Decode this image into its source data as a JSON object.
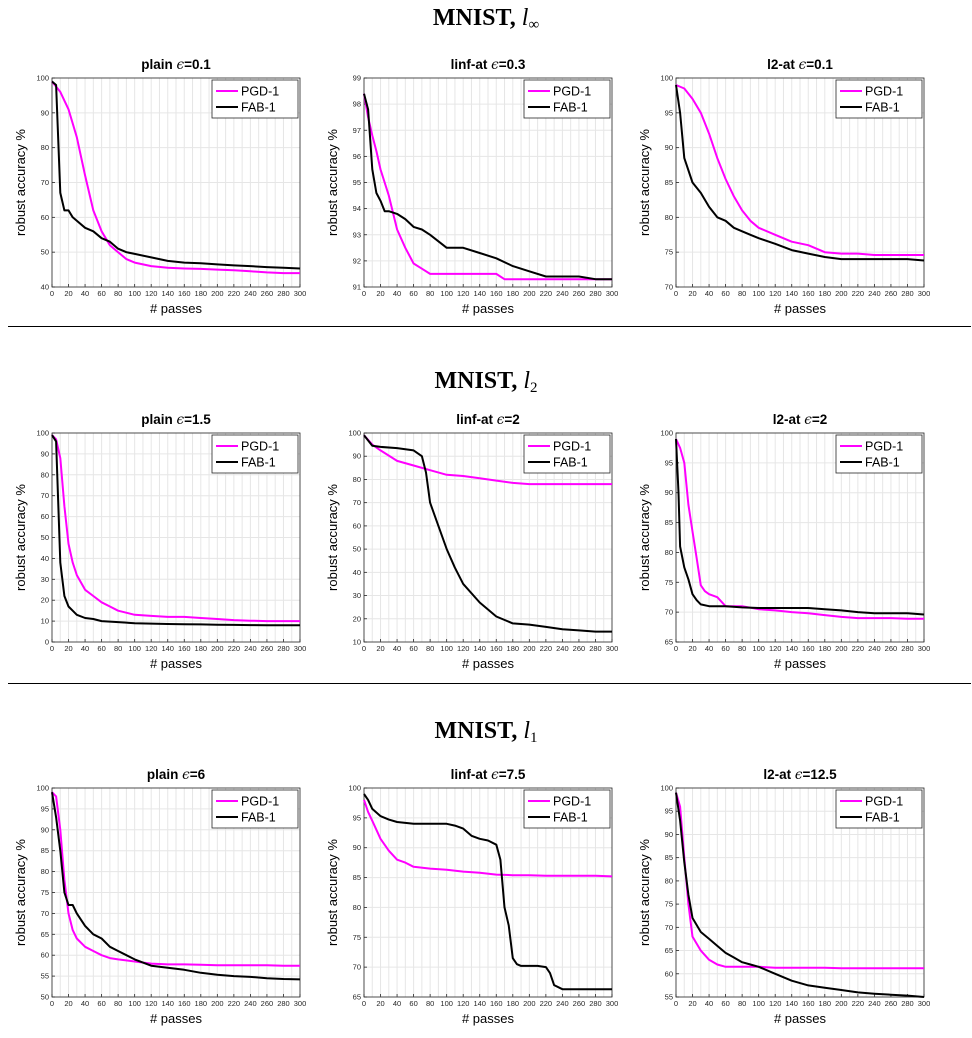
{
  "sections": [
    {
      "title": "MNIST,",
      "norm_letter": "l",
      "norm_sub": "∞"
    },
    {
      "title": "MNIST,",
      "norm_letter": "l",
      "norm_sub": "2"
    },
    {
      "title": "MNIST,",
      "norm_letter": "l",
      "norm_sub": "1"
    }
  ],
  "colors": {
    "PGD-1": "#ff00ff",
    "FAB-1": "#000000",
    "grid": "#e6e6e6"
  },
  "chart_data": [
    {
      "type": "line",
      "title_prefix": "plain",
      "title_value": "0.1",
      "xlabel": "# passes",
      "ylabel": "robust accuracy %",
      "xlim": [
        0,
        300
      ],
      "ylim": [
        40,
        100
      ],
      "yticks": [
        40,
        50,
        60,
        70,
        80,
        90,
        100
      ],
      "grid": true,
      "legend": "top-right",
      "series": [
        {
          "name": "PGD-1",
          "x": [
            0,
            10,
            20,
            30,
            40,
            50,
            60,
            70,
            80,
            90,
            100,
            120,
            140,
            160,
            180,
            200,
            220,
            240,
            260,
            280,
            300
          ],
          "y": [
            99,
            96,
            91,
            83,
            72,
            62,
            56,
            52,
            50,
            48,
            47,
            46,
            45.5,
            45.3,
            45.2,
            45,
            44.8,
            44.5,
            44.2,
            44,
            44
          ]
        },
        {
          "name": "FAB-1",
          "x": [
            0,
            5,
            10,
            15,
            20,
            25,
            30,
            40,
            50,
            60,
            70,
            80,
            90,
            100,
            120,
            140,
            160,
            180,
            200,
            220,
            240,
            260,
            280,
            300
          ],
          "y": [
            99,
            98,
            67,
            62,
            62,
            60,
            59,
            57,
            56,
            54,
            53,
            51,
            50,
            49.5,
            48.5,
            47.5,
            47,
            46.8,
            46.5,
            46.2,
            46,
            45.7,
            45.5,
            45.3
          ]
        }
      ]
    },
    {
      "type": "line",
      "title_prefix": "linf-at",
      "title_value": "0.3",
      "xlabel": "# passes",
      "ylabel": "robust accuracy %",
      "xlim": [
        0,
        300
      ],
      "ylim": [
        91,
        99
      ],
      "yticks": [
        91,
        92,
        93,
        94,
        95,
        96,
        97,
        98,
        99
      ],
      "grid": true,
      "legend": "top-right",
      "series": [
        {
          "name": "PGD-1",
          "x": [
            0,
            5,
            10,
            15,
            20,
            30,
            40,
            50,
            60,
            70,
            80,
            100,
            120,
            140,
            160,
            170,
            180,
            200,
            220,
            240,
            260,
            280,
            300
          ],
          "y": [
            98.4,
            97.5,
            96.8,
            96.2,
            95.5,
            94.5,
            93.2,
            92.5,
            91.9,
            91.7,
            91.5,
            91.5,
            91.5,
            91.5,
            91.5,
            91.3,
            91.3,
            91.3,
            91.3,
            91.3,
            91.3,
            91.3,
            91.3
          ]
        },
        {
          "name": "FAB-1",
          "x": [
            0,
            5,
            10,
            15,
            20,
            25,
            30,
            40,
            50,
            60,
            70,
            80,
            100,
            120,
            140,
            160,
            180,
            200,
            220,
            240,
            260,
            280,
            300
          ],
          "y": [
            98.4,
            97.8,
            95.5,
            94.6,
            94.3,
            93.9,
            93.9,
            93.8,
            93.6,
            93.3,
            93.2,
            93,
            92.5,
            92.5,
            92.3,
            92.1,
            91.8,
            91.6,
            91.4,
            91.4,
            91.4,
            91.3,
            91.3
          ]
        }
      ]
    },
    {
      "type": "line",
      "title_prefix": "l2-at",
      "title_value": "0.1",
      "xlabel": "# passes",
      "ylabel": "robust accuracy %",
      "xlim": [
        0,
        300
      ],
      "ylim": [
        70,
        100
      ],
      "yticks": [
        70,
        75,
        80,
        85,
        90,
        95,
        100
      ],
      "grid": true,
      "legend": "top-right",
      "series": [
        {
          "name": "PGD-1",
          "x": [
            0,
            10,
            20,
            30,
            40,
            50,
            60,
            70,
            80,
            90,
            100,
            120,
            140,
            160,
            180,
            200,
            220,
            240,
            260,
            280,
            300
          ],
          "y": [
            99,
            98.5,
            97,
            95,
            92,
            88.5,
            85.5,
            83,
            81,
            79.5,
            78.5,
            77.5,
            76.5,
            76,
            75,
            74.8,
            74.8,
            74.6,
            74.6,
            74.6,
            74.6
          ]
        },
        {
          "name": "FAB-1",
          "x": [
            0,
            5,
            10,
            20,
            30,
            40,
            50,
            60,
            70,
            80,
            90,
            100,
            120,
            140,
            160,
            180,
            200,
            220,
            240,
            260,
            280,
            300
          ],
          "y": [
            99,
            95,
            88.5,
            85,
            83.5,
            81.5,
            80,
            79.5,
            78.5,
            78,
            77.5,
            77,
            76.2,
            75.3,
            74.8,
            74.3,
            74,
            74,
            74,
            74,
            74,
            73.8
          ]
        }
      ]
    },
    {
      "type": "line",
      "title_prefix": "plain",
      "title_value": "1.5",
      "xlabel": "# passes",
      "ylabel": "robust accuracy %",
      "xlim": [
        0,
        300
      ],
      "ylim": [
        0,
        100
      ],
      "yticks": [
        0,
        10,
        20,
        30,
        40,
        50,
        60,
        70,
        80,
        90,
        100
      ],
      "grid": true,
      "legend": "top-right",
      "series": [
        {
          "name": "PGD-1",
          "x": [
            0,
            5,
            10,
            15,
            20,
            25,
            30,
            40,
            50,
            60,
            70,
            80,
            100,
            120,
            140,
            160,
            180,
            200,
            220,
            240,
            260,
            280,
            300
          ],
          "y": [
            99,
            97,
            88,
            65,
            47,
            38,
            32,
            25,
            22,
            19,
            17,
            15,
            13,
            12.5,
            12,
            12,
            11.5,
            11,
            10.5,
            10.2,
            10,
            10,
            10
          ]
        },
        {
          "name": "FAB-1",
          "x": [
            0,
            5,
            10,
            15,
            20,
            25,
            30,
            40,
            50,
            60,
            80,
            100,
            120,
            140,
            160,
            180,
            200,
            220,
            240,
            260,
            280,
            300
          ],
          "y": [
            99,
            96,
            38,
            22,
            17,
            15,
            13,
            11.5,
            11,
            10,
            9.5,
            9,
            8.8,
            8.6,
            8.5,
            8.4,
            8.3,
            8.2,
            8.1,
            8,
            8,
            8
          ]
        }
      ]
    },
    {
      "type": "line",
      "title_prefix": "linf-at",
      "title_value": "2",
      "xlabel": "# passes",
      "ylabel": "robust accuracy %",
      "xlim": [
        0,
        300
      ],
      "ylim": [
        10,
        100
      ],
      "yticks": [
        10,
        20,
        30,
        40,
        50,
        60,
        70,
        80,
        90,
        100
      ],
      "grid": true,
      "legend": "top-right",
      "series": [
        {
          "name": "PGD-1",
          "x": [
            0,
            10,
            20,
            40,
            60,
            80,
            100,
            120,
            140,
            160,
            180,
            200,
            220,
            240,
            260,
            280,
            300
          ],
          "y": [
            99,
            95,
            92.5,
            88,
            86,
            84,
            82,
            81.5,
            80.5,
            79.5,
            78.5,
            78,
            78,
            78,
            78,
            78,
            78
          ]
        },
        {
          "name": "FAB-1",
          "x": [
            0,
            10,
            20,
            40,
            60,
            70,
            75,
            80,
            90,
            100,
            110,
            120,
            140,
            160,
            180,
            200,
            220,
            240,
            260,
            280,
            300
          ],
          "y": [
            99,
            94.5,
            94,
            93.5,
            92.5,
            90,
            83,
            70,
            60,
            50,
            42,
            35,
            27,
            21,
            18,
            17.5,
            16.5,
            15.5,
            15,
            14.5,
            14.5
          ]
        }
      ]
    },
    {
      "type": "line",
      "title_prefix": "l2-at",
      "title_value": "2",
      "xlabel": "# passes",
      "ylabel": "robust accuracy %",
      "xlim": [
        0,
        300
      ],
      "ylim": [
        65,
        100
      ],
      "yticks": [
        65,
        70,
        75,
        80,
        85,
        90,
        95,
        100
      ],
      "grid": true,
      "legend": "top-right",
      "series": [
        {
          "name": "PGD-1",
          "x": [
            0,
            5,
            10,
            15,
            20,
            25,
            30,
            35,
            40,
            50,
            60,
            80,
            100,
            120,
            140,
            160,
            180,
            200,
            220,
            240,
            260,
            280,
            300
          ],
          "y": [
            99,
            97.5,
            95,
            88,
            83.5,
            79,
            74.5,
            73.5,
            73,
            72.5,
            71,
            71,
            70.5,
            70.3,
            70,
            69.8,
            69.5,
            69.2,
            69,
            69,
            69,
            68.9,
            68.9
          ]
        },
        {
          "name": "FAB-1",
          "x": [
            0,
            3,
            5,
            10,
            15,
            20,
            25,
            30,
            40,
            60,
            80,
            100,
            120,
            140,
            160,
            180,
            200,
            220,
            240,
            260,
            280,
            300
          ],
          "y": [
            99,
            90,
            81,
            77.5,
            75.5,
            73,
            72,
            71.3,
            71,
            71,
            70.8,
            70.7,
            70.7,
            70.7,
            70.7,
            70.5,
            70.3,
            70,
            69.8,
            69.8,
            69.8,
            69.6
          ]
        }
      ]
    },
    {
      "type": "line",
      "title_prefix": "plain",
      "title_value": "6",
      "xlabel": "# passes",
      "ylabel": "robust accuracy %",
      "xlim": [
        0,
        300
      ],
      "ylim": [
        50,
        100
      ],
      "yticks": [
        50,
        55,
        60,
        65,
        70,
        75,
        80,
        85,
        90,
        95,
        100
      ],
      "grid": true,
      "legend": "top-right",
      "series": [
        {
          "name": "PGD-1",
          "x": [
            0,
            5,
            10,
            15,
            20,
            25,
            30,
            40,
            50,
            60,
            70,
            80,
            100,
            120,
            140,
            160,
            180,
            200,
            220,
            240,
            260,
            280,
            300
          ],
          "y": [
            99,
            98,
            90,
            78,
            70,
            66,
            64,
            62,
            61,
            60,
            59.3,
            59,
            58.5,
            58,
            57.8,
            57.8,
            57.7,
            57.6,
            57.6,
            57.6,
            57.6,
            57.5,
            57.5
          ]
        },
        {
          "name": "FAB-1",
          "x": [
            0,
            5,
            10,
            15,
            20,
            25,
            30,
            40,
            50,
            60,
            70,
            80,
            90,
            100,
            120,
            140,
            160,
            180,
            200,
            220,
            240,
            260,
            280,
            300
          ],
          "y": [
            99,
            93,
            85,
            75,
            72,
            72,
            70,
            67,
            65,
            64,
            62,
            61,
            60,
            59,
            57.5,
            57,
            56.5,
            55.8,
            55.3,
            55,
            54.8,
            54.5,
            54.3,
            54.2
          ]
        }
      ]
    },
    {
      "type": "line",
      "title_prefix": "linf-at",
      "title_value": "7.5",
      "xlabel": "# passes",
      "ylabel": "robust accuracy %",
      "xlim": [
        0,
        300
      ],
      "ylim": [
        65,
        100
      ],
      "yticks": [
        65,
        70,
        75,
        80,
        85,
        90,
        95,
        100
      ],
      "grid": true,
      "legend": "top-right",
      "series": [
        {
          "name": "PGD-1",
          "x": [
            0,
            5,
            10,
            20,
            30,
            40,
            50,
            60,
            80,
            100,
            120,
            140,
            160,
            180,
            200,
            220,
            240,
            260,
            280,
            300
          ],
          "y": [
            98,
            96,
            94.5,
            91.5,
            89.5,
            88,
            87.5,
            86.8,
            86.5,
            86.3,
            86,
            85.8,
            85.5,
            85.4,
            85.4,
            85.3,
            85.3,
            85.3,
            85.3,
            85.2
          ]
        },
        {
          "name": "FAB-1",
          "x": [
            0,
            5,
            10,
            20,
            30,
            40,
            60,
            80,
            100,
            110,
            120,
            130,
            140,
            150,
            160,
            165,
            170,
            175,
            180,
            185,
            190,
            200,
            210,
            220,
            225,
            230,
            240,
            250,
            260,
            280,
            300
          ],
          "y": [
            99,
            98,
            96.5,
            95.3,
            94.7,
            94.3,
            94,
            94,
            94,
            93.7,
            93.2,
            92,
            91.5,
            91.2,
            90.5,
            88,
            80,
            77,
            71.5,
            70.5,
            70.2,
            70.2,
            70.2,
            70,
            69,
            67,
            66.3,
            66.3,
            66.3,
            66.3,
            66.3
          ]
        }
      ]
    },
    {
      "type": "line",
      "title_prefix": "l2-at",
      "title_value": "12.5",
      "xlabel": "# passes",
      "ylabel": "robust accuracy %",
      "xlim": [
        0,
        300
      ],
      "ylim": [
        55,
        100
      ],
      "yticks": [
        55,
        60,
        65,
        70,
        75,
        80,
        85,
        90,
        95,
        100
      ],
      "grid": true,
      "legend": "top-right",
      "series": [
        {
          "name": "PGD-1",
          "x": [
            0,
            5,
            10,
            15,
            20,
            30,
            40,
            50,
            60,
            80,
            100,
            120,
            140,
            160,
            180,
            200,
            220,
            240,
            260,
            280,
            300
          ],
          "y": [
            99,
            96,
            85,
            75,
            68,
            65,
            63,
            62,
            61.5,
            61.5,
            61.5,
            61.3,
            61.3,
            61.3,
            61.3,
            61.2,
            61.2,
            61.2,
            61.2,
            61.2,
            61.2
          ]
        },
        {
          "name": "FAB-1",
          "x": [
            0,
            5,
            10,
            15,
            20,
            30,
            40,
            50,
            60,
            70,
            80,
            90,
            100,
            120,
            140,
            160,
            180,
            200,
            220,
            240,
            260,
            280,
            300
          ],
          "y": [
            99,
            93,
            84,
            77,
            72,
            69,
            67.5,
            66,
            64.5,
            63.5,
            62.5,
            62,
            61.5,
            60,
            58.5,
            57.5,
            57,
            56.5,
            56,
            55.7,
            55.5,
            55.3,
            55
          ]
        }
      ]
    }
  ]
}
